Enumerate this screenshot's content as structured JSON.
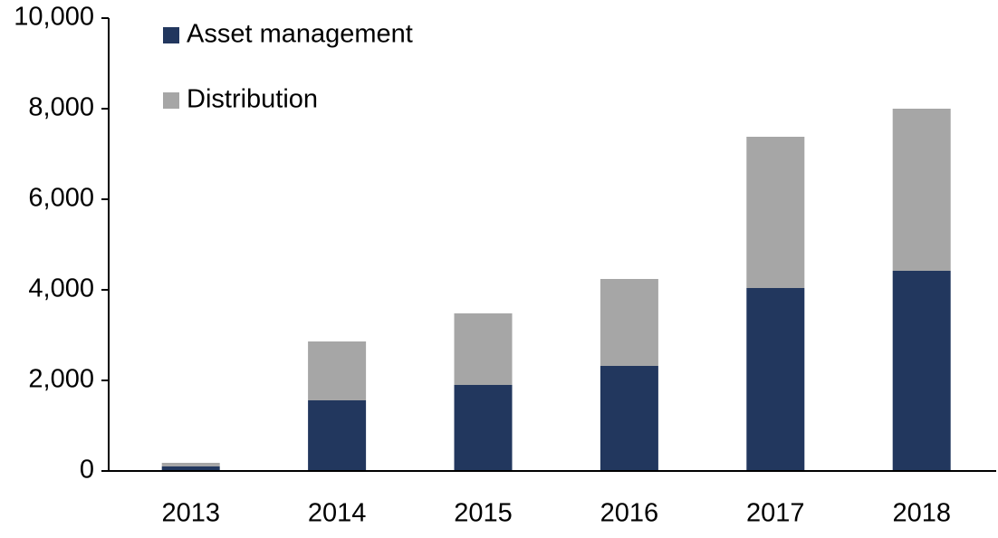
{
  "chart_data": {
    "type": "stacked_bar",
    "categories": [
      "2013",
      "2014",
      "2015",
      "2016",
      "2017",
      "2018"
    ],
    "series": [
      {
        "name": "Asset management",
        "color": "#22375e",
        "values": [
          100,
          1560,
          1900,
          2320,
          4040,
          4420
        ]
      },
      {
        "name": "Distribution",
        "color": "#a6a6a6",
        "values": [
          80,
          1300,
          1580,
          1920,
          3340,
          3580
        ]
      }
    ],
    "ylim": [
      0,
      10000
    ],
    "yticks": [
      0,
      {
        "value": 2000,
        "label": "2,000"
      },
      {
        "value": 4000,
        "label": "4,000"
      },
      {
        "value": 6000,
        "label": "6,000"
      },
      {
        "value": 8000,
        "label": "8,000"
      },
      {
        "value": 10000,
        "label": "10,000"
      }
    ],
    "grid": false,
    "legend": "top-left"
  }
}
